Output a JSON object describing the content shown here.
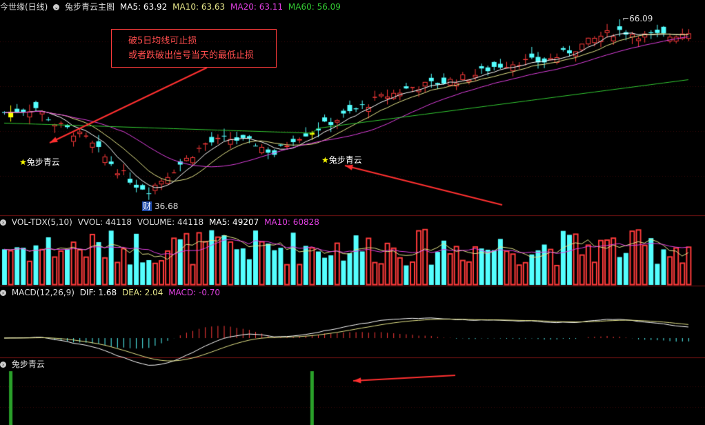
{
  "main_header": {
    "stock": "今世缘(日线)",
    "indicator": "兔步青云主图",
    "ma5": "MA5: 63.92",
    "ma10": "MA10: 63.63",
    "ma20": "MA20: 63.11",
    "ma60": "MA60: 56.09"
  },
  "annotation": {
    "line1": "破5日均线可止损",
    "line2": "或者跌破出信号当天的最低止损"
  },
  "signals": [
    {
      "label": "兔步青云",
      "index": 1
    },
    {
      "label": "兔步青云",
      "index": 49
    }
  ],
  "price_labels": {
    "high": "66.09",
    "low": "36.68",
    "low_marker": "财"
  },
  "vol_header": {
    "name": "VOL-TDX(5,10)",
    "vvol": "VVOL: 44118",
    "volume": "VOLUME: 44118",
    "ma5": "MA5: 49207",
    "ma10": "MA10: 60828"
  },
  "macd_header": {
    "name": "MACD(12,26,9)",
    "dif": "DIF: 1.68",
    "dea": "DEA: 2.04",
    "macd": "MACD: -0.70"
  },
  "signal_header": {
    "name": "兔步青云"
  },
  "colors": {
    "up": "#ff3b3b",
    "down": "#54ffff",
    "ma5": "#ffffff",
    "ma10": "#e6e68a",
    "ma20": "#e040e0",
    "ma60": "#33cc33",
    "signal_bar": "#2aa02a",
    "highlight": "#ffff00"
  },
  "chart_data": {
    "type": "candlestick",
    "n_days": 110,
    "price_range": [
      30,
      70
    ],
    "signal_days": [
      1,
      49
    ],
    "high_day": 98,
    "low_day": 23
  }
}
